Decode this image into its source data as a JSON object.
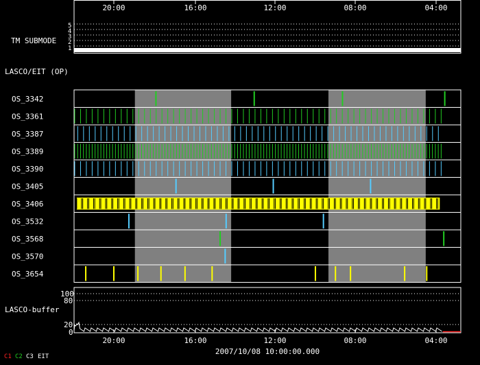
{
  "colors": {
    "background": "#000000",
    "panel_border": "#ffffff",
    "shade": "#808080",
    "green": "#22cc22",
    "cyan": "#55ccff",
    "yellow": "#ffff00",
    "red": "#ff2222"
  },
  "chart_data": {
    "type": "timeline",
    "time_tick_labels": [
      "20:00",
      "16:00",
      "12:00",
      "08:00",
      "04:00"
    ],
    "footer_date": "2007/10/08 10:00:00.000",
    "legend": [
      {
        "label": "C1",
        "color": "#ff2222"
      },
      {
        "label": "C2",
        "color": "#22cc22"
      },
      {
        "label": "C3",
        "color": "#ffffff"
      },
      {
        "label": "EIT",
        "color": "#ffffff"
      }
    ],
    "tm_submode": {
      "label": "TM SUBMODE",
      "levels": [
        "5",
        "4",
        "3",
        "2",
        "1"
      ],
      "value": 1
    },
    "section_label": "LASCO/EIT (OP)",
    "shaded_spans_hours": [
      [
        22.95,
        18.15
      ],
      [
        13.3,
        8.45
      ]
    ],
    "rows": [
      {
        "label": "OS_3342",
        "events": [
          {
            "t": 21.9,
            "color": "green"
          },
          {
            "t": 17.0,
            "color": "green"
          },
          {
            "t": 12.6,
            "color": "green"
          },
          {
            "t": 7.5,
            "color": "green"
          }
        ]
      },
      {
        "label": "OS_3361",
        "pattern": {
          "start": 25.95,
          "end": 7.6,
          "step": 0.29,
          "color": "green"
        }
      },
      {
        "label": "OS_3387",
        "pattern": {
          "start": 25.95,
          "end": 7.6,
          "step": 0.29,
          "color": "cyan",
          "offset": 0.15
        }
      },
      {
        "label": "OS_3389",
        "pattern": {
          "start": 25.95,
          "end": 7.6,
          "step": 0.145,
          "color": "green"
        }
      },
      {
        "label": "OS_3390",
        "pattern": {
          "start": 25.95,
          "end": 7.6,
          "step": 0.29,
          "color": "cyan"
        }
      },
      {
        "label": "OS_3405",
        "events": [
          {
            "t": 20.9,
            "color": "cyan"
          },
          {
            "t": 16.05,
            "color": "cyan"
          },
          {
            "t": 11.2,
            "color": "cyan"
          }
        ]
      },
      {
        "label": "OS_3406",
        "pattern": {
          "start": 25.85,
          "end": 7.75,
          "step": 0.06,
          "color": "yellow"
        },
        "background": "yellow"
      },
      {
        "label": "OS_3532",
        "events": [
          {
            "t": 23.25,
            "color": "cyan"
          },
          {
            "t": 18.4,
            "color": "cyan"
          },
          {
            "t": 13.55,
            "color": "cyan"
          }
        ]
      },
      {
        "label": "OS_3568",
        "events": [
          {
            "t": 18.7,
            "color": "green"
          },
          {
            "t": 7.55,
            "color": "green"
          }
        ]
      },
      {
        "label": "OS_3570",
        "events": [
          {
            "t": 18.45,
            "color": "cyan"
          }
        ]
      },
      {
        "label": "OS_3654",
        "events": [
          {
            "t": 25.4,
            "color": "yellow"
          },
          {
            "t": 24.0,
            "color": "yellow"
          },
          {
            "t": 22.8,
            "color": "yellow"
          },
          {
            "t": 21.65,
            "color": "yellow"
          },
          {
            "t": 20.45,
            "color": "yellow"
          },
          {
            "t": 19.1,
            "color": "yellow"
          },
          {
            "t": 13.95,
            "color": "yellow"
          },
          {
            "t": 12.95,
            "color": "yellow"
          },
          {
            "t": 12.2,
            "color": "yellow"
          },
          {
            "t": 9.5,
            "color": "yellow"
          },
          {
            "t": 8.4,
            "color": "yellow"
          }
        ]
      }
    ],
    "buffer": {
      "label": "LASCO-buffer",
      "y_tick_labels": [
        "100",
        "80",
        "20",
        "0"
      ]
    }
  }
}
